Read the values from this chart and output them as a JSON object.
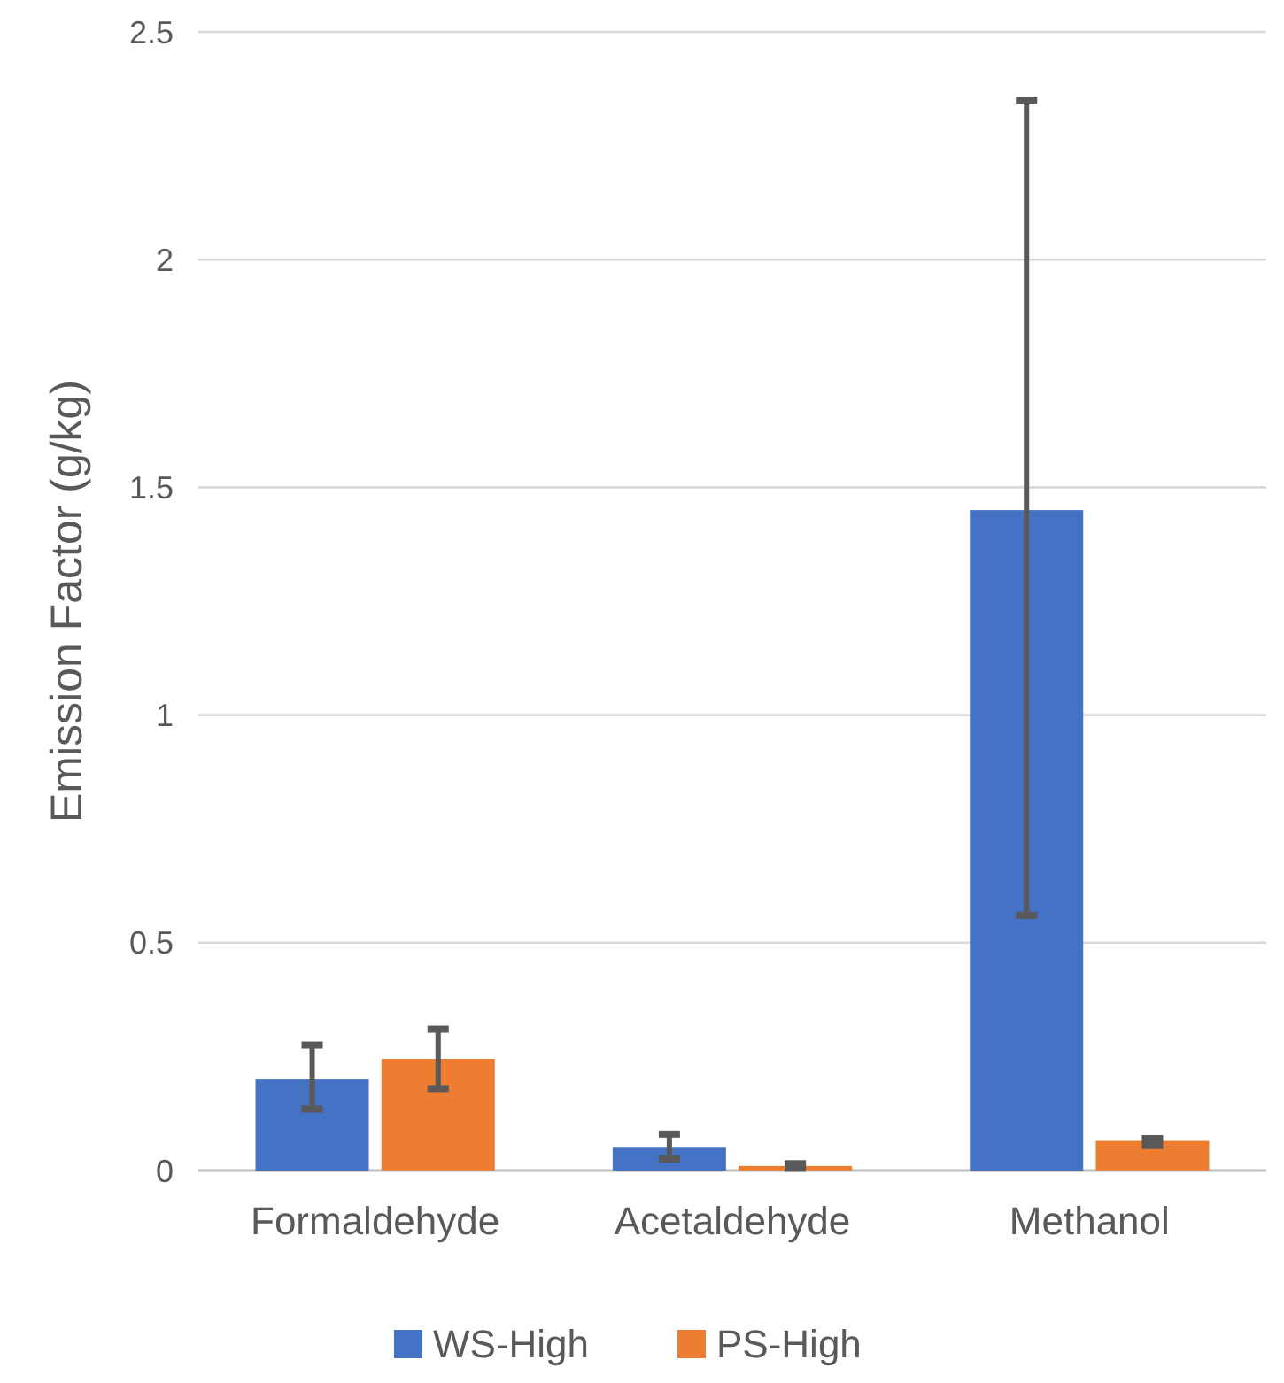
{
  "chart_data": {
    "type": "bar",
    "ylabel": "Emission Factor (g/kg)",
    "categories": [
      "Formaldehyde",
      "Acetaldehyde",
      "Methanol"
    ],
    "series": [
      {
        "name": "WS-High",
        "color": "#4472c4",
        "values": [
          0.2,
          0.05,
          1.45
        ],
        "errors": [
          [
            0.135,
            0.275
          ],
          [
            0.025,
            0.08
          ],
          [
            0.56,
            2.35
          ]
        ]
      },
      {
        "name": "PS-High",
        "color": "#ed7d31",
        "values": [
          0.245,
          0.01,
          0.065
        ],
        "errors": [
          [
            0.18,
            0.31
          ],
          [
            0.005,
            0.015
          ],
          [
            0.055,
            0.07
          ]
        ]
      }
    ],
    "ylim": [
      0,
      2.5
    ],
    "yticks": [
      0,
      0.5,
      1,
      1.5,
      2,
      2.5
    ],
    "grid": "y",
    "legend": "bottom"
  }
}
